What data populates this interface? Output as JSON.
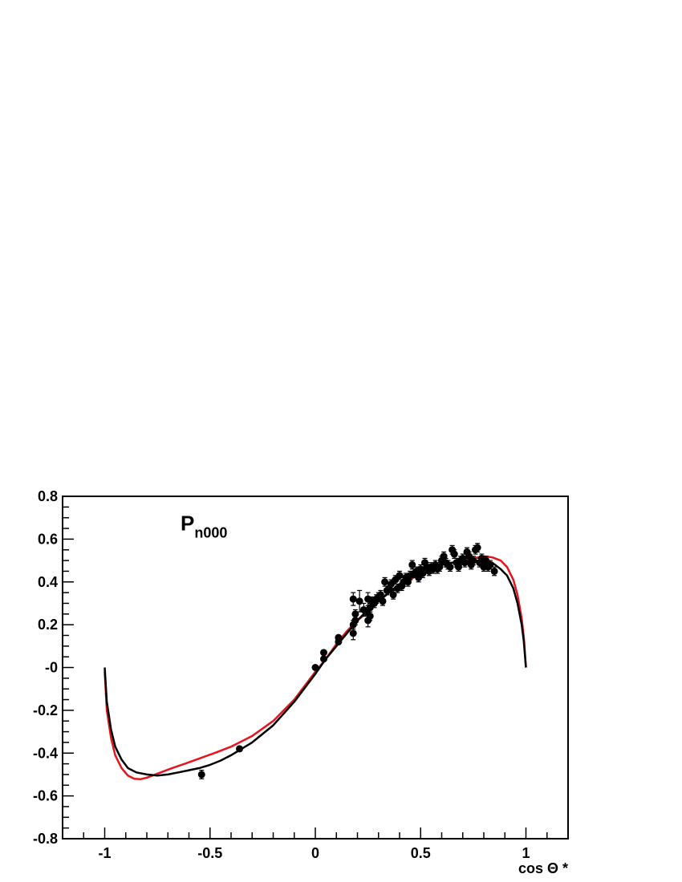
{
  "chart_data": {
    "type": "scatter",
    "xlabel": "cos Θ *",
    "ylabel": "",
    "xlim": [
      -1.2,
      1.2
    ],
    "ylim": [
      -0.8,
      0.8
    ],
    "x_ticks": [
      -1,
      -0.5,
      0,
      0.5,
      1
    ],
    "x_tick_labels": [
      "-1",
      "-0.5",
      "0",
      "0.5",
      "1"
    ],
    "y_ticks": [
      -0.8,
      -0.6,
      -0.4,
      -0.2,
      0,
      0.2,
      0.4,
      0.6,
      0.8
    ],
    "y_tick_labels": [
      "-0.8",
      "-0.6",
      "-0.4",
      "-0.2",
      "-0",
      "0.2",
      "0.4",
      "0.6",
      "0.8"
    ],
    "annotation": {
      "main": "P",
      "sub": "n000",
      "x": -0.64,
      "y": 0.64
    },
    "grid": false,
    "colors": {
      "curve_red": "#e8141c",
      "curve_black": "#000000",
      "points": "#000000"
    },
    "series": [
      {
        "kind": "line",
        "color": "#e8141c",
        "x": [
          -1.0,
          -0.99,
          -0.97,
          -0.95,
          -0.92,
          -0.89,
          -0.86,
          -0.83,
          -0.8,
          -0.76,
          -0.72,
          -0.68,
          -0.62,
          -0.55,
          -0.48,
          -0.4,
          -0.3,
          -0.2,
          -0.1,
          0.0,
          0.05,
          0.1,
          0.15,
          0.2,
          0.25,
          0.3,
          0.35,
          0.4,
          0.45,
          0.5,
          0.55,
          0.6,
          0.65,
          0.7,
          0.75,
          0.8,
          0.84,
          0.88,
          0.91,
          0.94,
          0.96,
          0.98,
          0.99,
          1.0
        ],
        "y": [
          -0.02,
          -0.2,
          -0.33,
          -0.41,
          -0.47,
          -0.505,
          -0.52,
          -0.522,
          -0.515,
          -0.5,
          -0.485,
          -0.47,
          -0.45,
          -0.425,
          -0.4,
          -0.37,
          -0.32,
          -0.25,
          -0.15,
          -0.02,
          0.04,
          0.11,
          0.17,
          0.22,
          0.26,
          0.31,
          0.35,
          0.39,
          0.41,
          0.44,
          0.46,
          0.48,
          0.49,
          0.5,
          0.51,
          0.52,
          0.515,
          0.5,
          0.47,
          0.41,
          0.34,
          0.23,
          0.14,
          0.0
        ]
      },
      {
        "kind": "line",
        "color": "#000000",
        "x": [
          -1.0,
          -0.99,
          -0.97,
          -0.95,
          -0.92,
          -0.89,
          -0.85,
          -0.8,
          -0.75,
          -0.7,
          -0.65,
          -0.6,
          -0.55,
          -0.5,
          -0.45,
          -0.4,
          -0.3,
          -0.2,
          -0.1,
          0.0,
          0.05,
          0.1,
          0.15,
          0.2,
          0.25,
          0.3,
          0.35,
          0.4,
          0.45,
          0.5,
          0.55,
          0.6,
          0.65,
          0.7,
          0.75,
          0.8,
          0.84,
          0.88,
          0.91,
          0.94,
          0.96,
          0.98,
          0.99,
          1.0
        ],
        "y": [
          0.0,
          -0.16,
          -0.29,
          -0.37,
          -0.43,
          -0.47,
          -0.49,
          -0.5,
          -0.505,
          -0.5,
          -0.49,
          -0.48,
          -0.47,
          -0.455,
          -0.435,
          -0.41,
          -0.35,
          -0.27,
          -0.16,
          -0.03,
          0.04,
          0.1,
          0.16,
          0.22,
          0.27,
          0.31,
          0.35,
          0.39,
          0.42,
          0.45,
          0.47,
          0.48,
          0.49,
          0.49,
          0.5,
          0.5,
          0.49,
          0.46,
          0.43,
          0.37,
          0.3,
          0.2,
          0.12,
          0.0
        ]
      },
      {
        "kind": "points",
        "name": "",
        "color": "#000000",
        "x": [
          -0.54,
          -0.36,
          0.0,
          0.04,
          0.04,
          0.11,
          0.11,
          0.18,
          0.18,
          0.18,
          0.19,
          0.19,
          0.21,
          0.23,
          0.24,
          0.25,
          0.25,
          0.26,
          0.26,
          0.27,
          0.28,
          0.29,
          0.3,
          0.31,
          0.32,
          0.33,
          0.34,
          0.35,
          0.36,
          0.37,
          0.38,
          0.39,
          0.4,
          0.41,
          0.42,
          0.43,
          0.44,
          0.45,
          0.46,
          0.47,
          0.48,
          0.49,
          0.5,
          0.51,
          0.52,
          0.53,
          0.54,
          0.55,
          0.56,
          0.57,
          0.58,
          0.59,
          0.6,
          0.61,
          0.62,
          0.63,
          0.64,
          0.65,
          0.66,
          0.67,
          0.68,
          0.69,
          0.7,
          0.71,
          0.72,
          0.73,
          0.74,
          0.75,
          0.76,
          0.77,
          0.78,
          0.79,
          0.8,
          0.81,
          0.82,
          0.83,
          0.85
        ],
        "y": [
          -0.5,
          -0.38,
          0.0,
          0.04,
          0.07,
          0.12,
          0.14,
          0.16,
          0.2,
          0.32,
          0.25,
          0.22,
          0.31,
          0.27,
          0.26,
          0.22,
          0.32,
          0.28,
          0.24,
          0.31,
          0.3,
          0.32,
          0.33,
          0.34,
          0.31,
          0.4,
          0.36,
          0.37,
          0.39,
          0.34,
          0.41,
          0.37,
          0.43,
          0.38,
          0.4,
          0.42,
          0.4,
          0.43,
          0.48,
          0.44,
          0.45,
          0.42,
          0.46,
          0.44,
          0.49,
          0.47,
          0.45,
          0.47,
          0.46,
          0.48,
          0.46,
          0.47,
          0.5,
          0.52,
          0.49,
          0.48,
          0.47,
          0.55,
          0.53,
          0.49,
          0.47,
          0.5,
          0.51,
          0.49,
          0.54,
          0.52,
          0.48,
          0.5,
          0.55,
          0.56,
          0.49,
          0.51,
          0.47,
          0.5,
          0.47,
          0.48,
          0.45
        ],
        "err": [
          0.02,
          0.01,
          0.01,
          0.01,
          0.01,
          0.01,
          0.01,
          0.03,
          0.02,
          0.03,
          0.02,
          0.02,
          0.05,
          0.03,
          0.02,
          0.03,
          0.03,
          0.02,
          0.02,
          0.02,
          0.02,
          0.02,
          0.02,
          0.02,
          0.02,
          0.02,
          0.02,
          0.02,
          0.02,
          0.02,
          0.02,
          0.02,
          0.02,
          0.02,
          0.02,
          0.02,
          0.02,
          0.02,
          0.02,
          0.02,
          0.02,
          0.02,
          0.02,
          0.02,
          0.02,
          0.02,
          0.02,
          0.02,
          0.02,
          0.02,
          0.02,
          0.02,
          0.02,
          0.02,
          0.02,
          0.02,
          0.02,
          0.02,
          0.02,
          0.02,
          0.02,
          0.02,
          0.02,
          0.02,
          0.02,
          0.02,
          0.02,
          0.02,
          0.02,
          0.02,
          0.02,
          0.02,
          0.02,
          0.02,
          0.02,
          0.02,
          0.02
        ]
      }
    ]
  }
}
